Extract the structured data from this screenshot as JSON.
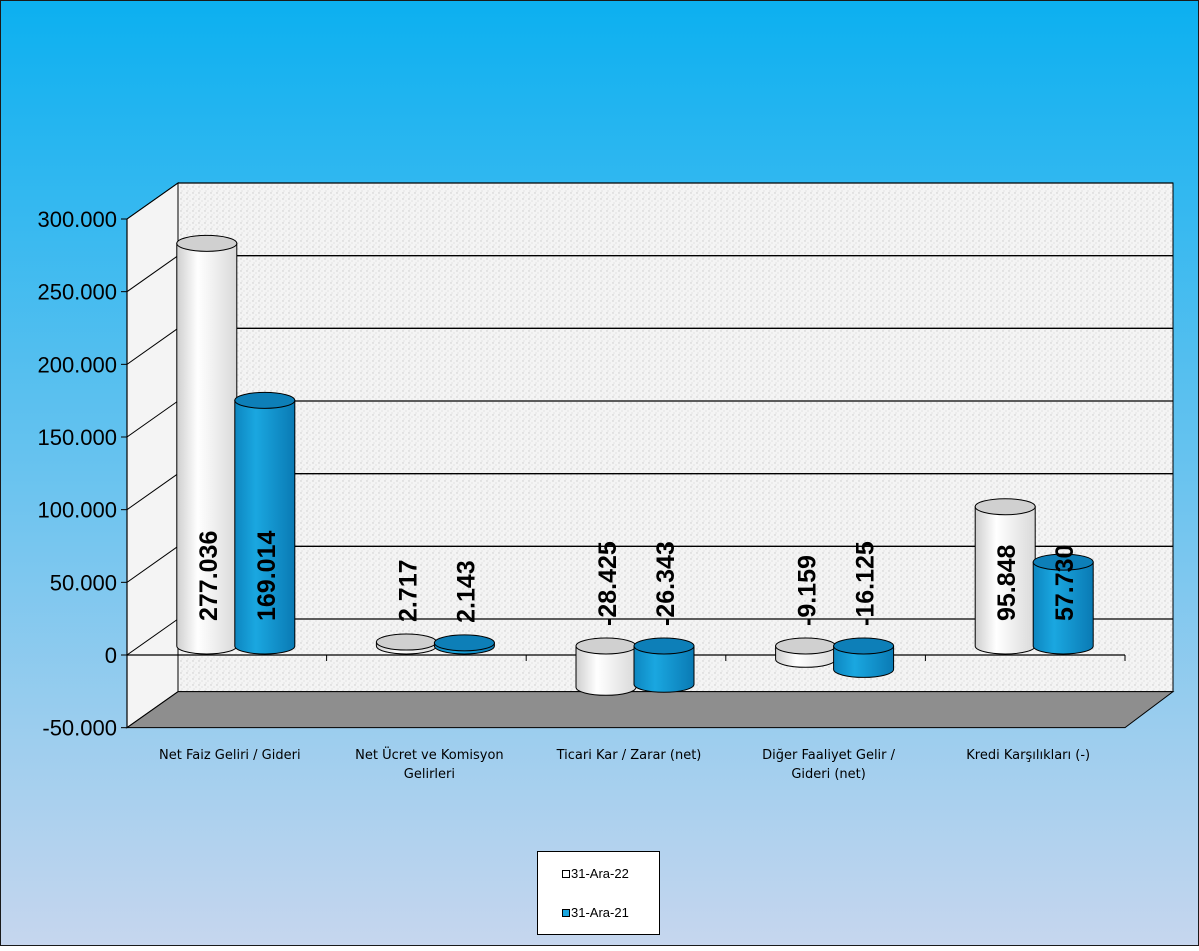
{
  "colors": {
    "background_top": "#0cb0f0",
    "background_bottom": "#c6d6ee",
    "floor": "#8e8e8e",
    "wall": "#f4f4f4",
    "series_1": "#ffffff",
    "series_2": "#1aa7e0"
  },
  "legend": {
    "items": [
      {
        "label": "31-Ara-22"
      },
      {
        "label": "31-Ara-21"
      }
    ]
  },
  "chart_data": {
    "type": "bar",
    "style": "3d-cylinder",
    "categories": [
      "Net Faiz Geliri / Gideri",
      "Net Ücret ve Komisyon Gelirleri",
      "Ticari Kar / Zarar (net)",
      "Diğer Faaliyet Gelir / Gideri (net)",
      "Kredi Karşılıkları (-)"
    ],
    "category_label_lines": [
      [
        "Net Faiz Geliri / Gideri"
      ],
      [
        "Net Ücret ve Komisyon",
        "Gelirleri"
      ],
      [
        "Ticari Kar / Zarar (net)"
      ],
      [
        "Diğer Faaliyet Gelir /",
        "Gideri (net)"
      ],
      [
        "Kredi Karşılıkları (-)"
      ]
    ],
    "series": [
      {
        "name": "31-Ara-22",
        "values": [
          277036,
          2717,
          -28425,
          -9159,
          95848
        ],
        "labels": [
          "277.036",
          "2.717",
          "-28.425",
          "-9.159",
          "95.848"
        ]
      },
      {
        "name": "31-Ara-21",
        "values": [
          169014,
          2143,
          -26343,
          -16125,
          57730
        ],
        "labels": [
          "169.014",
          "2.143",
          "-26.343",
          "-16.125",
          "57.730"
        ]
      }
    ],
    "ylim": [
      -50000,
      300000
    ],
    "yticks": [
      -50000,
      0,
      50000,
      100000,
      150000,
      200000,
      250000,
      300000
    ],
    "ytick_labels": [
      "-50.000",
      "0",
      "50.000",
      "100.000",
      "150.000",
      "200.000",
      "250.000",
      "300.000"
    ],
    "grid": true,
    "legend_position": "bottom",
    "title": "",
    "xlabel": "",
    "ylabel": ""
  }
}
